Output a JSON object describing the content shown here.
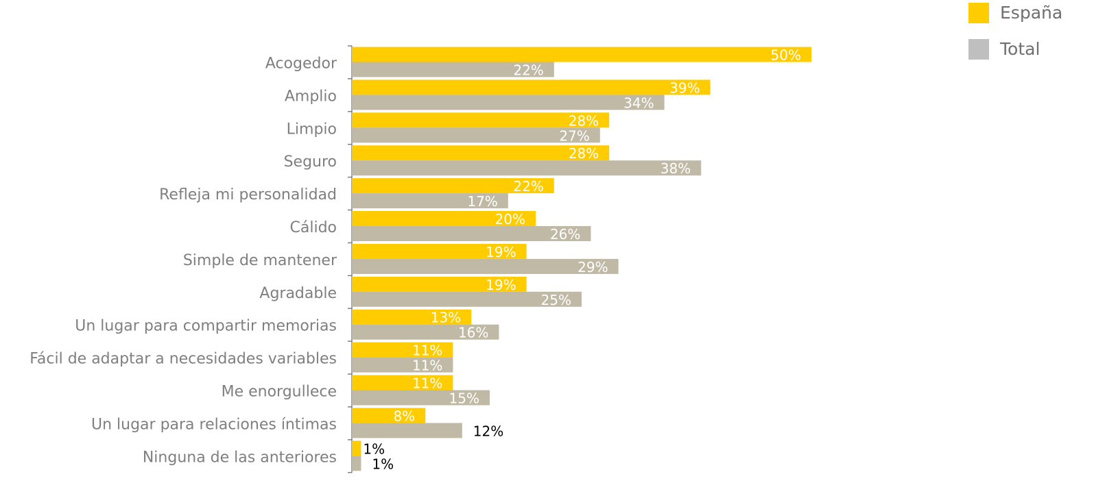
{
  "chart_data": {
    "type": "bar",
    "orientation": "horizontal",
    "categories": [
      "Acogedor",
      "Amplio",
      "Limpio",
      "Seguro",
      "Refleja mi personalidad",
      "Cálido",
      "Simple de mantener",
      "Agradable",
      "Un lugar para compartir memorias",
      "Fácil de adaptar a necesidades variables",
      "Me enorgullece",
      "Un lugar para relaciones íntimas",
      "Ninguna de las anteriores"
    ],
    "series": [
      {
        "name": "España",
        "color": "#ffcc00",
        "values": [
          50,
          39,
          28,
          28,
          22,
          20,
          19,
          19,
          13,
          11,
          11,
          8,
          1
        ],
        "labels": [
          "50%",
          "39%",
          "28%",
          "28%",
          "22%",
          "20%",
          "19%",
          "19%",
          "13%",
          "11%",
          "11%",
          "8%",
          "1%"
        ]
      },
      {
        "name": "Total",
        "color": "#c0b9a6",
        "values": [
          22,
          34,
          27,
          38,
          17,
          26,
          29,
          25,
          16,
          11,
          15,
          12,
          1
        ],
        "labels": [
          "22%",
          "34%",
          "27%",
          "38%",
          "17%",
          "26%",
          "29%",
          "25%",
          "16%",
          "11%",
          "15%",
          "12%",
          "1%"
        ]
      }
    ],
    "legend": {
      "position": "top-right",
      "items": [
        {
          "label": "España",
          "color": "#ffcc00"
        },
        {
          "label": "Total",
          "color": "#bfbfbf"
        }
      ]
    },
    "xlim": [
      0,
      50
    ],
    "grid": false
  }
}
